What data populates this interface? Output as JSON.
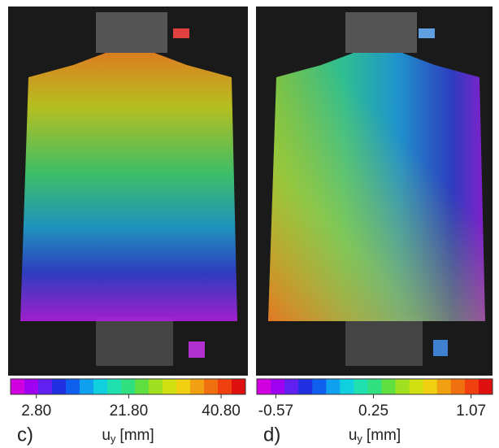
{
  "panels": [
    {
      "label": "c)",
      "axis_label": {
        "symbol": "u",
        "subscript": "y",
        "unit": "[mm]"
      },
      "colorbar": {
        "lim": [
          -2.5,
          45.8
        ],
        "ticks": [
          {
            "value": 2.8,
            "label": "2.80"
          },
          {
            "value": 21.8,
            "label": "21.80"
          },
          {
            "value": 40.8,
            "label": "40.80"
          }
        ],
        "colors": [
          "#d000e0",
          "#a000f0",
          "#6020f0",
          "#2030e0",
          "#1060f0",
          "#10a0f0",
          "#10d0e0",
          "#20e0b0",
          "#30e080",
          "#60e040",
          "#a0e020",
          "#d0e010",
          "#f0d010",
          "#f0a010",
          "#f07010",
          "#f04010",
          "#e01010"
        ]
      }
    },
    {
      "label": "d)",
      "axis_label": {
        "symbol": "u",
        "subscript": "y",
        "unit": "[mm]"
      },
      "colorbar": {
        "lim": [
          -0.73,
          1.25
        ],
        "ticks": [
          {
            "value": -0.57,
            "label": "-0.57"
          },
          {
            "value": 0.25,
            "label": "0.25"
          },
          {
            "value": 1.07,
            "label": "1.07"
          }
        ],
        "colors": [
          "#d000e0",
          "#a000f0",
          "#6020f0",
          "#2030e0",
          "#1060f0",
          "#10a0f0",
          "#10d0e0",
          "#20e0b0",
          "#30e080",
          "#60e040",
          "#a0e020",
          "#d0e010",
          "#f0d010",
          "#f0a010",
          "#f07010",
          "#f04010",
          "#e01010"
        ]
      }
    }
  ]
}
